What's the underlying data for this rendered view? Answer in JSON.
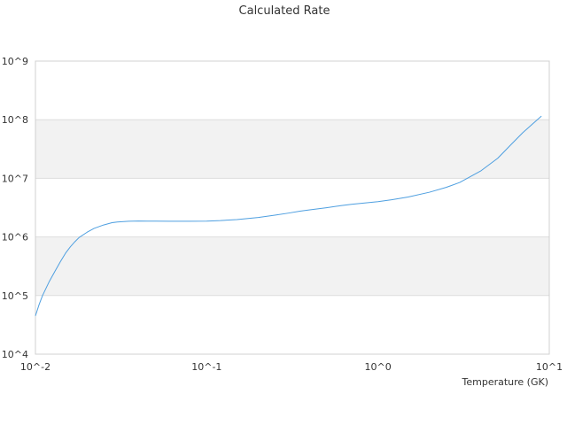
{
  "chart_data": {
    "type": "line",
    "title": "Calculated Rate",
    "xlabel": "Temperature (GK)",
    "ylabel": "",
    "x_scale": "log",
    "y_scale": "log",
    "xlim": [
      0.01,
      10
    ],
    "ylim": [
      10000,
      1000000000
    ],
    "x_tick_labels": [
      "10^-2",
      "10^-1",
      "10^0",
      "10^1"
    ],
    "y_tick_labels": [
      "10^4",
      "10^5",
      "10^6",
      "10^7",
      "10^8",
      "10^9"
    ],
    "grid": "horizontal alternating bands",
    "legend": "none",
    "line_color": "#4e9fe0",
    "band_color": "#f2f2f2",
    "series": [
      {
        "x": [
          0.01,
          0.0105,
          0.011,
          0.012,
          0.013,
          0.014,
          0.015,
          0.016,
          0.017,
          0.018,
          0.02,
          0.022,
          0.025,
          0.028,
          0.03,
          0.035,
          0.04,
          0.045,
          0.05,
          0.06,
          0.07,
          0.08,
          0.1,
          0.12,
          0.15,
          0.2,
          0.25,
          0.3,
          0.35,
          0.4,
          0.5,
          0.6,
          0.7,
          0.8,
          1.0,
          1.2,
          1.5,
          2.0,
          2.5,
          3.0,
          4.0,
          5.0,
          6.0,
          7.0,
          8.0,
          9.0
        ],
        "y": [
          45000,
          70000,
          100000,
          170000,
          260000,
          380000,
          530000,
          680000,
          830000,
          980000,
          1200000,
          1400000,
          1600000,
          1750000,
          1800000,
          1850000,
          1870000,
          1860000,
          1860000,
          1850000,
          1850000,
          1850000,
          1860000,
          1900000,
          1980000,
          2150000,
          2350000,
          2550000,
          2750000,
          2900000,
          3150000,
          3400000,
          3600000,
          3750000,
          4000000,
          4300000,
          4800000,
          5800000,
          7000000,
          8500000,
          13500000,
          22000000,
          38000000,
          60000000,
          85000000,
          115000000
        ]
      }
    ]
  }
}
